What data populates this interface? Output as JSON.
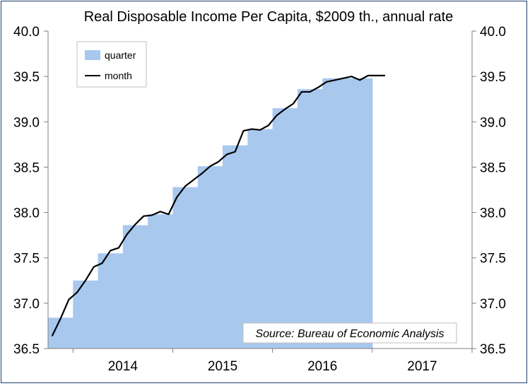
{
  "chart_data": {
    "type": "area",
    "title": "Real Disposable Income Per Capita, $2009 th., annual rate",
    "source": "Source: Bureau of Economic Analysis",
    "ylim": [
      36.5,
      40.0
    ],
    "yticks": [
      "36.5",
      "37.0",
      "37.5",
      "38.0",
      "38.5",
      "39.0",
      "39.5",
      "40.0"
    ],
    "xlim": [
      "2013-10",
      "2017-12"
    ],
    "xticks": [
      {
        "label": "2014",
        "year": 2014
      },
      {
        "label": "2015",
        "year": 2015
      },
      {
        "label": "2016",
        "year": 2016
      },
      {
        "label": "2017",
        "year": 2017
      }
    ],
    "legend": {
      "position": "top-left"
    },
    "series": [
      {
        "name": "quarter",
        "kind": "step-area",
        "color": "#a8c8ee",
        "x": [
          "2013-Q4",
          "2014-Q1",
          "2014-Q2",
          "2014-Q3",
          "2014-Q4",
          "2015-Q1",
          "2015-Q2",
          "2015-Q3",
          "2015-Q4",
          "2016-Q1",
          "2016-Q2",
          "2016-Q3",
          "2016-Q4"
        ],
        "values": [
          36.84,
          37.25,
          37.55,
          37.86,
          37.98,
          38.28,
          38.51,
          38.74,
          38.92,
          39.15,
          39.36,
          39.48,
          39.48
        ]
      },
      {
        "name": "month",
        "kind": "line",
        "color": "#000000",
        "x": [
          "2013-10",
          "2013-11",
          "2013-12",
          "2014-01",
          "2014-02",
          "2014-03",
          "2014-04",
          "2014-05",
          "2014-06",
          "2014-07",
          "2014-08",
          "2014-09",
          "2014-10",
          "2014-11",
          "2014-12",
          "2015-01",
          "2015-02",
          "2015-03",
          "2015-04",
          "2015-05",
          "2015-06",
          "2015-07",
          "2015-08",
          "2015-09",
          "2015-10",
          "2015-11",
          "2015-12",
          "2016-01",
          "2016-02",
          "2016-03",
          "2016-04",
          "2016-05",
          "2016-06",
          "2016-07",
          "2016-08",
          "2016-09",
          "2016-10",
          "2016-11",
          "2016-12",
          "2017-01",
          "2017-02"
        ],
        "values": [
          36.64,
          36.83,
          37.04,
          37.12,
          37.25,
          37.4,
          37.44,
          37.58,
          37.61,
          37.76,
          37.87,
          37.96,
          37.97,
          38.01,
          37.98,
          38.17,
          38.29,
          38.36,
          38.43,
          38.51,
          38.56,
          38.64,
          38.67,
          38.9,
          38.92,
          38.91,
          38.96,
          39.07,
          39.14,
          39.2,
          39.33,
          39.33,
          39.38,
          39.44,
          39.46,
          39.48,
          39.5,
          39.46,
          39.51,
          39.51,
          39.51
        ]
      }
    ]
  }
}
